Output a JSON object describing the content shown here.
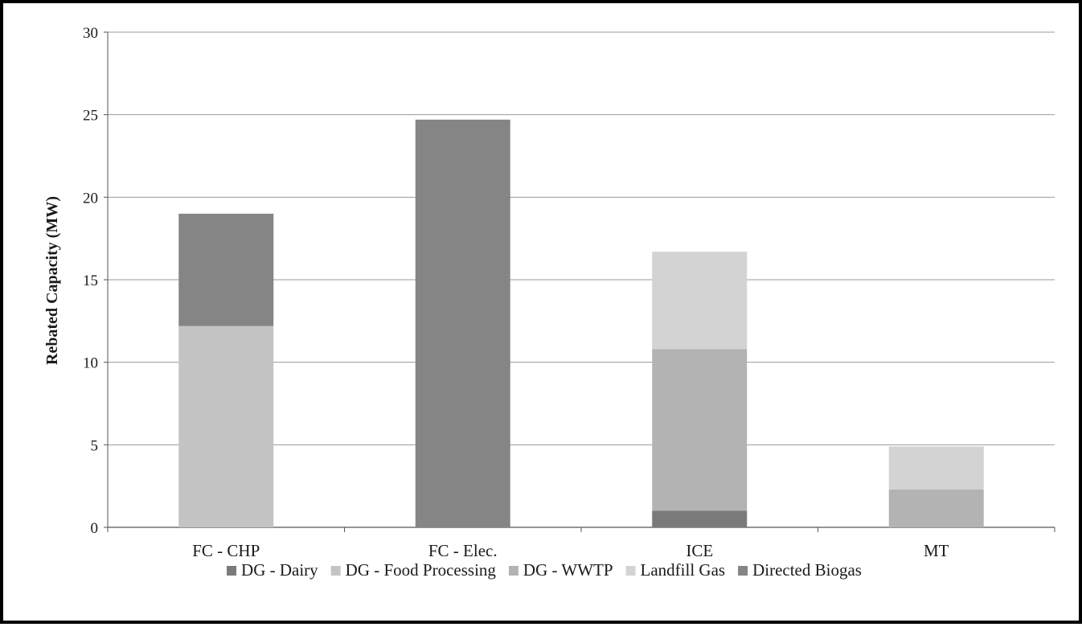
{
  "chart_data": {
    "type": "bar",
    "stacked": true,
    "title": "",
    "xlabel": "",
    "ylabel": "Rebated Capacity (MW)",
    "ylim": [
      0,
      30
    ],
    "yticks": [
      "0",
      "5",
      "10",
      "15",
      "20",
      "25",
      "30"
    ],
    "categories": [
      "FC - CHP",
      "FC - Elec.",
      "ICE",
      "MT"
    ],
    "grid": true,
    "legend_position": "bottom",
    "series": [
      {
        "name": "DG - Dairy",
        "color": "#7a7a7a",
        "values": [
          0,
          0,
          1.0,
          0
        ]
      },
      {
        "name": "DG - Food Processing",
        "color": "#c4c4c4",
        "values": [
          12.2,
          0,
          0,
          0
        ]
      },
      {
        "name": "DG - WWTP",
        "color": "#b3b3b3",
        "values": [
          0,
          0,
          9.8,
          2.3
        ]
      },
      {
        "name": "Landfill Gas",
        "color": "#d3d3d3",
        "values": [
          0,
          0,
          5.9,
          2.6
        ]
      },
      {
        "name": "Directed Biogas",
        "color": "#858585",
        "values": [
          6.8,
          24.7,
          0,
          0
        ]
      }
    ]
  }
}
